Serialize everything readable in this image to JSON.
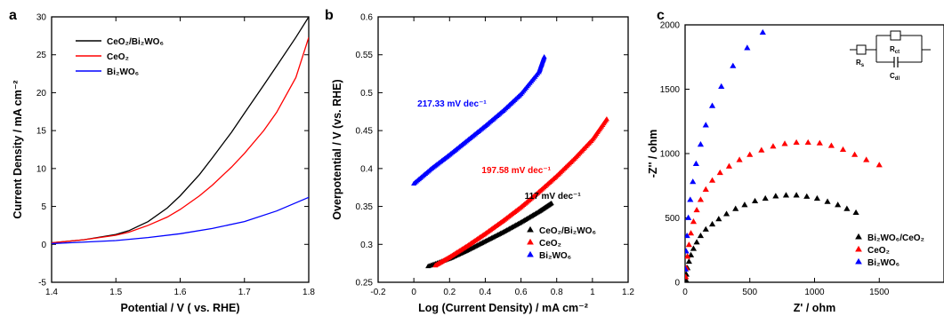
{
  "chart_data": [
    {
      "type": "line",
      "panel_label": "a",
      "title": "",
      "xlabel": "Potential / V ( vs. RHE)",
      "ylabel": "Current Density / mA cm⁻²",
      "xlim": [
        1.4,
        1.8
      ],
      "ylim": [
        -5,
        30
      ],
      "xticks": [
        1.4,
        1.5,
        1.6,
        1.7,
        1.8
      ],
      "yticks": [
        -5,
        0,
        5,
        10,
        15,
        20,
        25,
        30
      ],
      "grid": false,
      "legend": "top-left",
      "series": [
        {
          "name": "CeO₂/Bi₂WO₆",
          "color": "#000000",
          "x": [
            1.4,
            1.45,
            1.5,
            1.52,
            1.55,
            1.58,
            1.6,
            1.63,
            1.65,
            1.68,
            1.7,
            1.73,
            1.75,
            1.78,
            1.8
          ],
          "y": [
            0.2,
            0.6,
            1.3,
            1.8,
            3.0,
            4.8,
            6.4,
            9.2,
            11.4,
            14.8,
            17.3,
            21.0,
            23.5,
            27.3,
            30.0
          ]
        },
        {
          "name": "CeO₂",
          "color": "#ff0000",
          "x": [
            1.4,
            1.45,
            1.5,
            1.52,
            1.55,
            1.58,
            1.6,
            1.63,
            1.65,
            1.68,
            1.7,
            1.73,
            1.75,
            1.78,
            1.8
          ],
          "y": [
            0.2,
            0.6,
            1.2,
            1.6,
            2.5,
            3.6,
            4.6,
            6.4,
            7.8,
            10.2,
            12.0,
            15.0,
            17.4,
            22.0,
            27.3
          ]
        },
        {
          "name": "Bi₂WO₆",
          "color": "#0000ff",
          "x": [
            1.4,
            1.45,
            1.5,
            1.55,
            1.6,
            1.65,
            1.7,
            1.75,
            1.8
          ],
          "y": [
            0.1,
            0.3,
            0.5,
            0.9,
            1.4,
            2.1,
            3.0,
            4.4,
            6.2
          ]
        }
      ]
    },
    {
      "type": "scatter",
      "panel_label": "b",
      "title": "",
      "xlabel": "Log (Current Density) / mA cm⁻²",
      "ylabel": "Overpotential / V  (vs. RHE)",
      "xlim": [
        -0.2,
        1.2
      ],
      "ylim": [
        0.25,
        0.6
      ],
      "xticks": [
        -0.2,
        0,
        0.2,
        0.4,
        0.6,
        0.8,
        1,
        1.2
      ],
      "yticks": [
        0.25,
        0.3,
        0.35,
        0.4,
        0.45,
        0.5,
        0.55,
        0.6
      ],
      "grid": false,
      "legend": "bottom-right",
      "annotations": [
        {
          "text": "217.33 mV dec⁻¹",
          "color": "#0000ff",
          "x": 0.02,
          "y": 0.482
        },
        {
          "text": "197.58 mV dec⁻¹",
          "color": "#ff0000",
          "x": 0.38,
          "y": 0.394
        },
        {
          "text": "117 mV dec⁻¹",
          "color": "#000000",
          "x": 0.62,
          "y": 0.36
        }
      ],
      "series": [
        {
          "name": "CeO₂/Bi₂WO₆",
          "color": "#000000",
          "marker": "triangle",
          "x": [
            0.08,
            0.2,
            0.3,
            0.4,
            0.5,
            0.6,
            0.7,
            0.77
          ],
          "y": [
            0.271,
            0.281,
            0.292,
            0.304,
            0.316,
            0.329,
            0.343,
            0.354
          ]
        },
        {
          "name": "CeO₂",
          "color": "#ff0000",
          "marker": "triangle",
          "x": [
            0.12,
            0.2,
            0.3,
            0.4,
            0.5,
            0.6,
            0.7,
            0.8,
            0.9,
            1.0,
            1.08
          ],
          "y": [
            0.272,
            0.283,
            0.298,
            0.314,
            0.331,
            0.349,
            0.369,
            0.39,
            0.413,
            0.438,
            0.465
          ]
        },
        {
          "name": "Bi₂WO₆",
          "color": "#0000ff",
          "marker": "triangle",
          "x": [
            0.0,
            0.1,
            0.2,
            0.3,
            0.4,
            0.5,
            0.6,
            0.7,
            0.73
          ],
          "y": [
            0.38,
            0.4,
            0.418,
            0.437,
            0.456,
            0.476,
            0.498,
            0.527,
            0.547
          ]
        }
      ]
    },
    {
      "type": "scatter",
      "panel_label": "c",
      "title": "",
      "xlabel": "Z' / ohm",
      "ylabel": "-Z'' / ohm",
      "xlim": [
        0,
        2000
      ],
      "ylim": [
        0,
        2000
      ],
      "xticks": [
        0,
        500,
        1000,
        1500
      ],
      "yticks": [
        0,
        500,
        1000,
        1500,
        2000
      ],
      "grid": false,
      "legend": "bottom-right",
      "inset_labels": {
        "rs": "R",
        "rs_sub": "s",
        "rct": "R",
        "rct_sub": "ct",
        "cdl": "C",
        "cdl_sub": "dl"
      },
      "series": [
        {
          "name": "Bi₂WO₆/CeO₂",
          "color": "#000000",
          "marker": "triangle",
          "x": [
            5,
            10,
            18,
            30,
            45,
            65,
            90,
            120,
            160,
            210,
            260,
            320,
            390,
            460,
            540,
            620,
            700,
            780,
            860,
            940,
            1020,
            1100,
            1180,
            1250,
            1320
          ],
          "y": [
            20,
            60,
            110,
            160,
            210,
            260,
            310,
            360,
            410,
            450,
            490,
            530,
            570,
            600,
            630,
            650,
            668,
            675,
            675,
            665,
            650,
            625,
            600,
            570,
            540
          ]
        },
        {
          "name": "CeO₂",
          "color": "#ff0000",
          "marker": "triangle",
          "x": [
            5,
            10,
            18,
            30,
            45,
            65,
            90,
            120,
            160,
            210,
            270,
            340,
            420,
            500,
            590,
            680,
            770,
            860,
            950,
            1040,
            1130,
            1220,
            1310,
            1400,
            1500
          ],
          "y": [
            40,
            110,
            200,
            290,
            380,
            470,
            560,
            640,
            720,
            790,
            850,
            900,
            950,
            990,
            1025,
            1055,
            1075,
            1085,
            1085,
            1080,
            1060,
            1030,
            990,
            950,
            910
          ]
        },
        {
          "name": "Bi₂WO₆",
          "color": "#0000ff",
          "marker": "triangle",
          "x": [
            3,
            8,
            15,
            25,
            40,
            60,
            85,
            120,
            160,
            210,
            280,
            370,
            480,
            600
          ],
          "y": [
            100,
            240,
            360,
            500,
            640,
            780,
            920,
            1070,
            1220,
            1370,
            1520,
            1680,
            1820,
            1940
          ]
        }
      ]
    }
  ]
}
